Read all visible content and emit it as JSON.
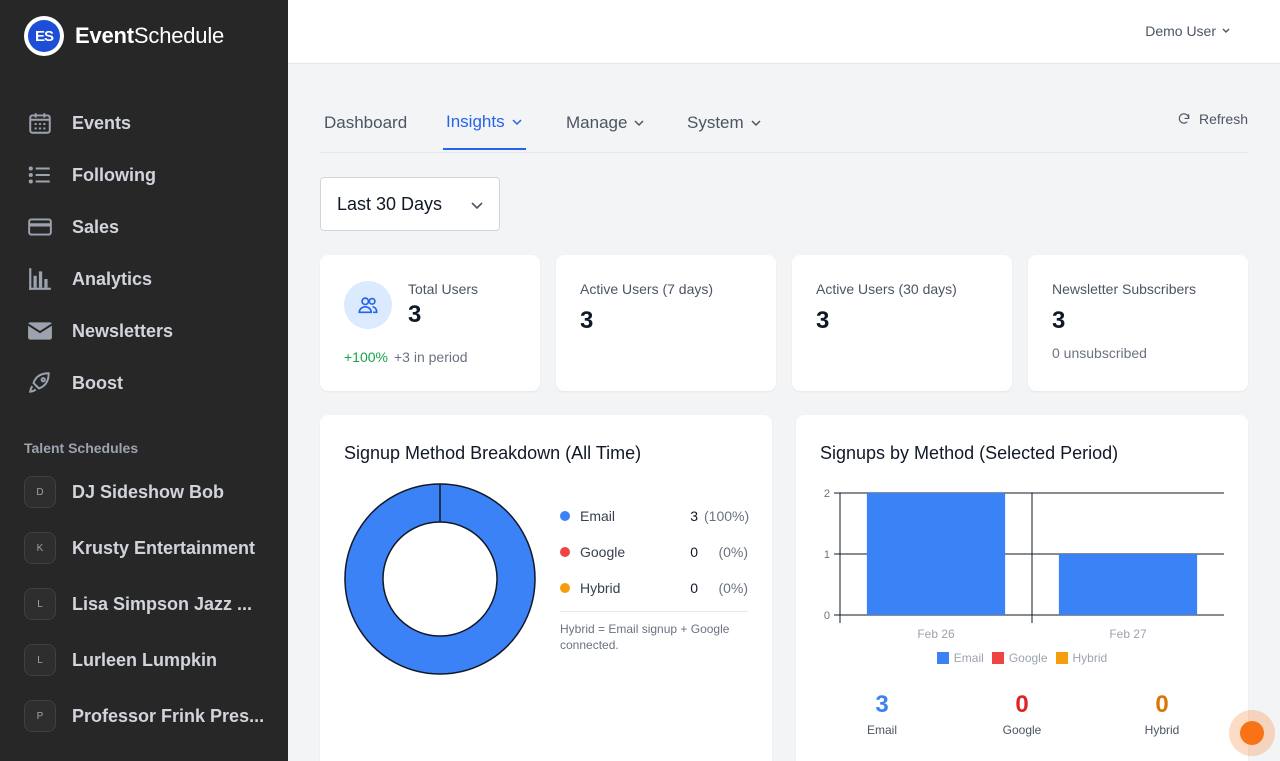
{
  "app": {
    "brand_bold": "Event",
    "brand_rest": "Schedule",
    "logo_text": "ES"
  },
  "sidebar": {
    "items": [
      {
        "label": "Events",
        "icon": "calendar-icon"
      },
      {
        "label": "Following",
        "icon": "list-icon"
      },
      {
        "label": "Sales",
        "icon": "credit-card-icon"
      },
      {
        "label": "Analytics",
        "icon": "bar-chart-icon"
      },
      {
        "label": "Newsletters",
        "icon": "mail-icon"
      },
      {
        "label": "Boost",
        "icon": "rocket-icon"
      }
    ],
    "talent_title": "Talent Schedules",
    "talent": [
      {
        "initial": "D",
        "label": "DJ Sideshow Bob"
      },
      {
        "initial": "K",
        "label": "Krusty Entertainment"
      },
      {
        "initial": "L",
        "label": "Lisa Simpson Jazz ..."
      },
      {
        "initial": "L",
        "label": "Lurleen Lumpkin"
      },
      {
        "initial": "P",
        "label": "Professor Frink Pres..."
      }
    ]
  },
  "header": {
    "user": "Demo User"
  },
  "tabs": [
    {
      "label": "Dashboard"
    },
    {
      "label": "Insights"
    },
    {
      "label": "Manage"
    },
    {
      "label": "System"
    }
  ],
  "refresh_label": "Refresh",
  "period": {
    "selected": "Last 30 Days"
  },
  "stats": {
    "total_users": {
      "label": "Total Users",
      "value": "3",
      "growth": "+100%",
      "in_period": "+3 in period"
    },
    "active_7": {
      "label": "Active Users (7 days)",
      "value": "3"
    },
    "active_30": {
      "label": "Active Users (30 days)",
      "value": "3"
    },
    "newsletter": {
      "label": "Newsletter Subscribers",
      "value": "3",
      "sub": "0 unsubscribed"
    }
  },
  "donut": {
    "title": "Signup Method Breakdown (All Time)",
    "legend": [
      {
        "name": "Email",
        "count": "3",
        "pct": "(100%)",
        "color": "#3b82f6"
      },
      {
        "name": "Google",
        "count": "0",
        "pct": "(0%)",
        "color": "#ef4444"
      },
      {
        "name": "Hybrid",
        "count": "0",
        "pct": "(0%)",
        "color": "#f59e0b"
      }
    ],
    "note": "Hybrid = Email signup + Google connected."
  },
  "bars": {
    "title": "Signups by Method (Selected Period)",
    "totals": [
      {
        "value": "3",
        "label": "Email",
        "color": "#3b82f6"
      },
      {
        "value": "0",
        "label": "Google",
        "color": "#dc2626"
      },
      {
        "value": "0",
        "label": "Hybrid",
        "color": "#d97706"
      }
    ]
  },
  "chart_data": [
    {
      "type": "pie",
      "title": "Signup Method Breakdown (All Time)",
      "categories": [
        "Email",
        "Google",
        "Hybrid"
      ],
      "values": [
        3,
        0,
        0
      ],
      "colors": [
        "#3b82f6",
        "#ef4444",
        "#f59e0b"
      ],
      "donut": true
    },
    {
      "type": "bar",
      "title": "Signups by Method (Selected Period)",
      "categories": [
        "Feb 26",
        "Feb 27"
      ],
      "series": [
        {
          "name": "Email",
          "values": [
            2,
            1
          ],
          "color": "#3b82f6"
        },
        {
          "name": "Google",
          "values": [
            0,
            0
          ],
          "color": "#ef4444"
        },
        {
          "name": "Hybrid",
          "values": [
            0,
            0
          ],
          "color": "#f59e0b"
        }
      ],
      "stacked": true,
      "ylim": [
        0,
        2
      ],
      "yticks": [
        "0",
        "1",
        "2"
      ],
      "legend": "bottom"
    }
  ]
}
